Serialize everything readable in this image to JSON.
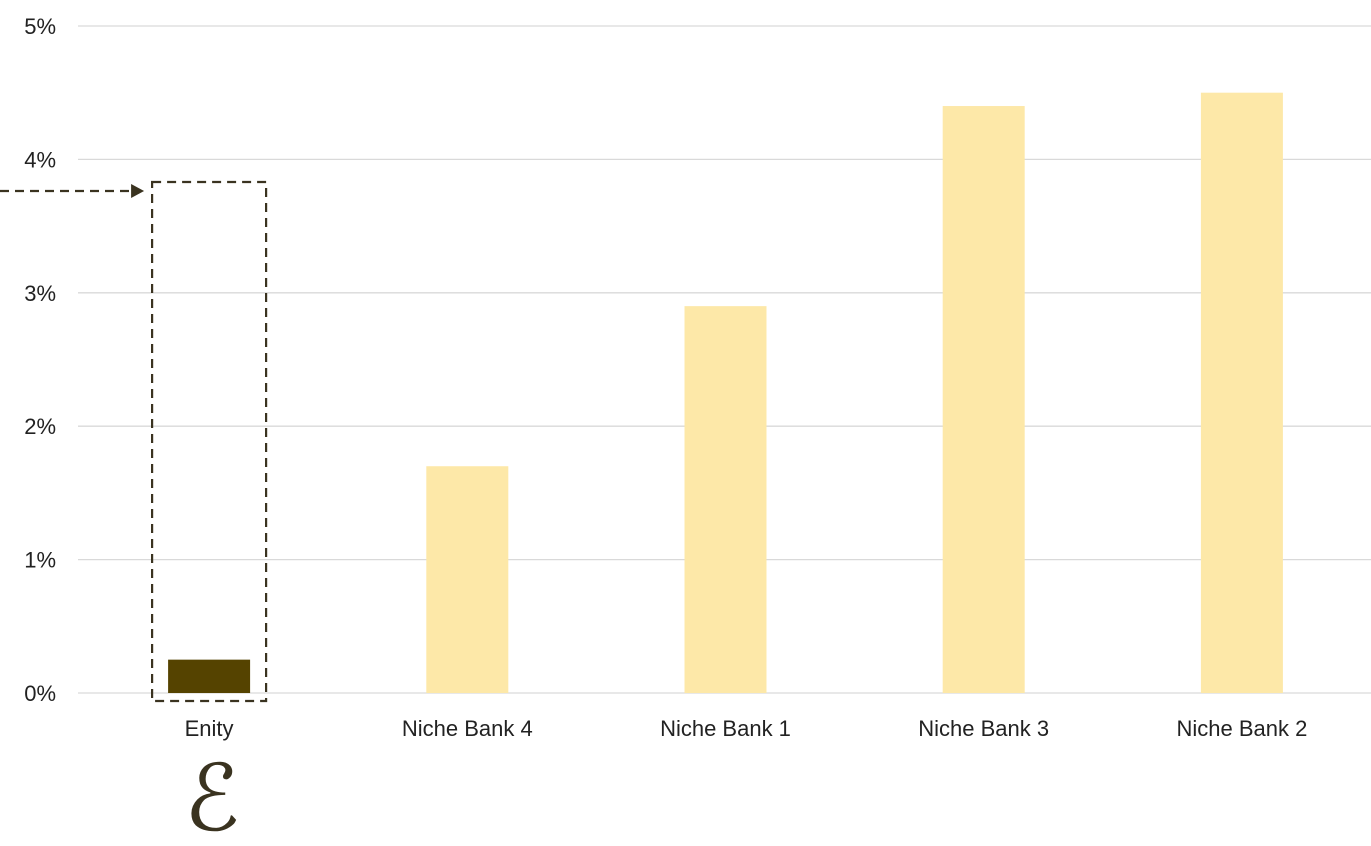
{
  "chart_data": {
    "type": "bar",
    "categories": [
      "Enity",
      "Niche Bank 4",
      "Niche Bank 1",
      "Niche Bank 3",
      "Niche Bank 2"
    ],
    "values": [
      0.25,
      1.7,
      2.9,
      4.4,
      4.5
    ],
    "highlight_index": 0,
    "ylim": [
      0,
      5
    ],
    "yticks": [
      "0%",
      "1%",
      "2%",
      "3%",
      "4%",
      "5%"
    ],
    "title": "",
    "xlabel": "",
    "ylabel": "",
    "grid": true,
    "colors": {
      "highlight": "#554300",
      "bar": "#fde8a8",
      "grid": "#d9d9d9",
      "annotation": "#3a3320"
    },
    "annotation": "dashed box with arrow around the Enity bar"
  },
  "logo": {
    "glyph": "ℰ",
    "name": "ampersand-logo"
  }
}
